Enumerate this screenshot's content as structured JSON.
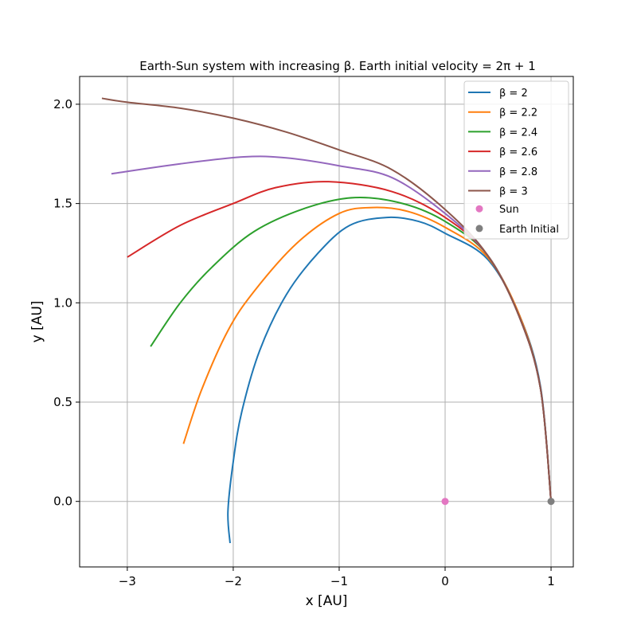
{
  "chart_data": {
    "type": "line",
    "title": "Earth-Sun system with increasing β. Earth initial velocity = 2π + 1",
    "xlabel": "x [AU]",
    "ylabel": "y [AU]",
    "xlim": [
      -3.45,
      1.21
    ],
    "ylim": [
      -0.33,
      2.14
    ],
    "grid": true,
    "legend_position": "top-right",
    "xticks": [
      {
        "value": -3,
        "label": "−3"
      },
      {
        "value": -2,
        "label": "−2"
      },
      {
        "value": -1,
        "label": "−1"
      },
      {
        "value": 0,
        "label": "0"
      },
      {
        "value": 1,
        "label": "1"
      }
    ],
    "yticks": [
      {
        "value": 0,
        "label": "0.0"
      },
      {
        "value": 0.5,
        "label": "0.5"
      },
      {
        "value": 1.0,
        "label": "1.0"
      },
      {
        "value": 1.5,
        "label": "1.5"
      },
      {
        "value": 2.0,
        "label": "2.0"
      }
    ],
    "series": [
      {
        "name": "β = 2",
        "color": "#1f77b4",
        "points": [
          [
            1.0,
            0.0
          ],
          [
            0.9,
            0.58
          ],
          [
            0.7,
            0.94
          ],
          [
            0.4,
            1.22
          ],
          [
            0.0,
            1.35
          ],
          [
            -0.25,
            1.41
          ],
          [
            -0.55,
            1.43
          ],
          [
            -0.9,
            1.39
          ],
          [
            -1.2,
            1.25
          ],
          [
            -1.5,
            1.04
          ],
          [
            -1.75,
            0.76
          ],
          [
            -1.92,
            0.45
          ],
          [
            -2.0,
            0.2
          ],
          [
            -2.05,
            -0.05
          ],
          [
            -2.03,
            -0.21
          ]
        ]
      },
      {
        "name": "β = 2.2",
        "color": "#ff7f0e",
        "points": [
          [
            1.0,
            0.0
          ],
          [
            0.9,
            0.57
          ],
          [
            0.7,
            0.94
          ],
          [
            0.4,
            1.23
          ],
          [
            0.0,
            1.38
          ],
          [
            -0.35,
            1.46
          ],
          [
            -0.68,
            1.48
          ],
          [
            -1.0,
            1.45
          ],
          [
            -1.4,
            1.3
          ],
          [
            -1.8,
            1.06
          ],
          [
            -2.05,
            0.86
          ],
          [
            -2.3,
            0.56
          ],
          [
            -2.47,
            0.29
          ]
        ]
      },
      {
        "name": "β = 2.4",
        "color": "#2ca02c",
        "points": [
          [
            1.0,
            0.0
          ],
          [
            0.9,
            0.57
          ],
          [
            0.7,
            0.93
          ],
          [
            0.4,
            1.24
          ],
          [
            0.0,
            1.41
          ],
          [
            -0.4,
            1.5
          ],
          [
            -0.85,
            1.53
          ],
          [
            -1.3,
            1.48
          ],
          [
            -1.8,
            1.36
          ],
          [
            -2.2,
            1.18
          ],
          [
            -2.5,
            1.0
          ],
          [
            -2.78,
            0.78
          ]
        ]
      },
      {
        "name": "β = 2.6",
        "color": "#d62728",
        "points": [
          [
            1.0,
            0.0
          ],
          [
            0.9,
            0.57
          ],
          [
            0.7,
            0.93
          ],
          [
            0.4,
            1.24
          ],
          [
            0.0,
            1.43
          ],
          [
            -0.5,
            1.56
          ],
          [
            -1.1,
            1.61
          ],
          [
            -1.6,
            1.58
          ],
          [
            -2.0,
            1.5
          ],
          [
            -2.5,
            1.39
          ],
          [
            -3.0,
            1.23
          ]
        ]
      },
      {
        "name": "β = 2.8",
        "color": "#9467bd",
        "points": [
          [
            1.0,
            0.0
          ],
          [
            0.9,
            0.57
          ],
          [
            0.7,
            0.93
          ],
          [
            0.4,
            1.24
          ],
          [
            0.0,
            1.45
          ],
          [
            -0.5,
            1.63
          ],
          [
            -1.0,
            1.69
          ],
          [
            -1.5,
            1.73
          ],
          [
            -1.9,
            1.735
          ],
          [
            -2.5,
            1.7
          ],
          [
            -3.15,
            1.65
          ]
        ]
      },
      {
        "name": "β = 3",
        "color": "#8c564b",
        "points": [
          [
            1.0,
            0.0
          ],
          [
            0.9,
            0.57
          ],
          [
            0.7,
            0.93
          ],
          [
            0.4,
            1.24
          ],
          [
            0.0,
            1.47
          ],
          [
            -0.5,
            1.67
          ],
          [
            -1.0,
            1.77
          ],
          [
            -1.5,
            1.86
          ],
          [
            -2.0,
            1.93
          ],
          [
            -2.5,
            1.98
          ],
          [
            -3.0,
            2.01
          ],
          [
            -3.24,
            2.03
          ]
        ]
      }
    ],
    "markers": [
      {
        "name": "Sun",
        "color": "#e377c2",
        "x": 0,
        "y": 0
      },
      {
        "name": "Earth Initial",
        "color": "#7f7f7f",
        "x": 1,
        "y": 0
      }
    ]
  }
}
